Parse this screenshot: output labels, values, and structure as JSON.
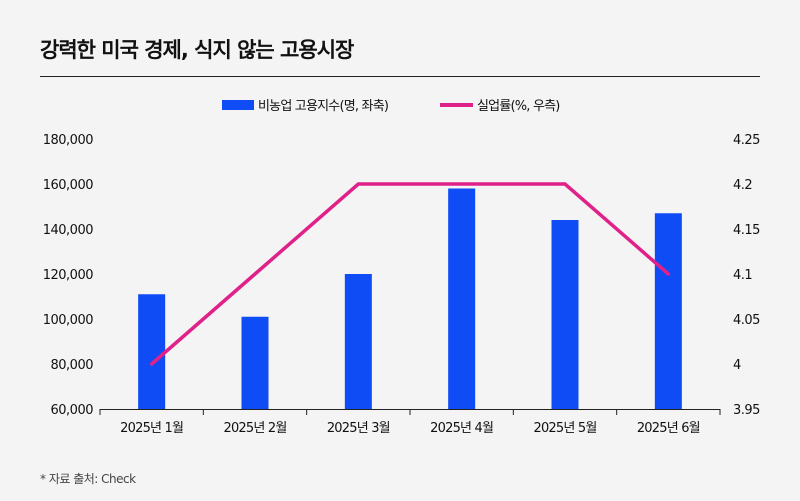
{
  "title": "강력한 미국 경제, 식지 않는 고용시장",
  "source": "* 자료 출처: Check",
  "colors": {
    "bar": "#0f4cf5",
    "line": "#e0218a",
    "background": "#f4f4f4"
  },
  "chart_data": {
    "type": "bar+line",
    "categories": [
      "2025년 1월",
      "2025년 2월",
      "2025년 3월",
      "2025년 4월",
      "2025년 5월",
      "2025년 6월"
    ],
    "series": [
      {
        "name": "비농업 고용지수(명, 좌축)",
        "type": "bar",
        "axis": "left",
        "values": [
          111000,
          101000,
          120000,
          158000,
          144000,
          147000
        ]
      },
      {
        "name": "실업률(%, 우측)",
        "type": "line",
        "axis": "right",
        "values": [
          4.0,
          4.1,
          4.2,
          4.2,
          4.2,
          4.1
        ]
      }
    ],
    "y_left": {
      "range": [
        60000,
        180000
      ],
      "ticks": [
        "60,000",
        "80,000",
        "100,000",
        "120,000",
        "140,000",
        "160,000",
        "180,000"
      ]
    },
    "y_right": {
      "range": [
        3.95,
        4.25
      ],
      "ticks": [
        "3.95",
        "4",
        "4.05",
        "4.1",
        "4.15",
        "4.2",
        "4.25"
      ]
    },
    "legend_position": "top-center",
    "grid": false
  }
}
